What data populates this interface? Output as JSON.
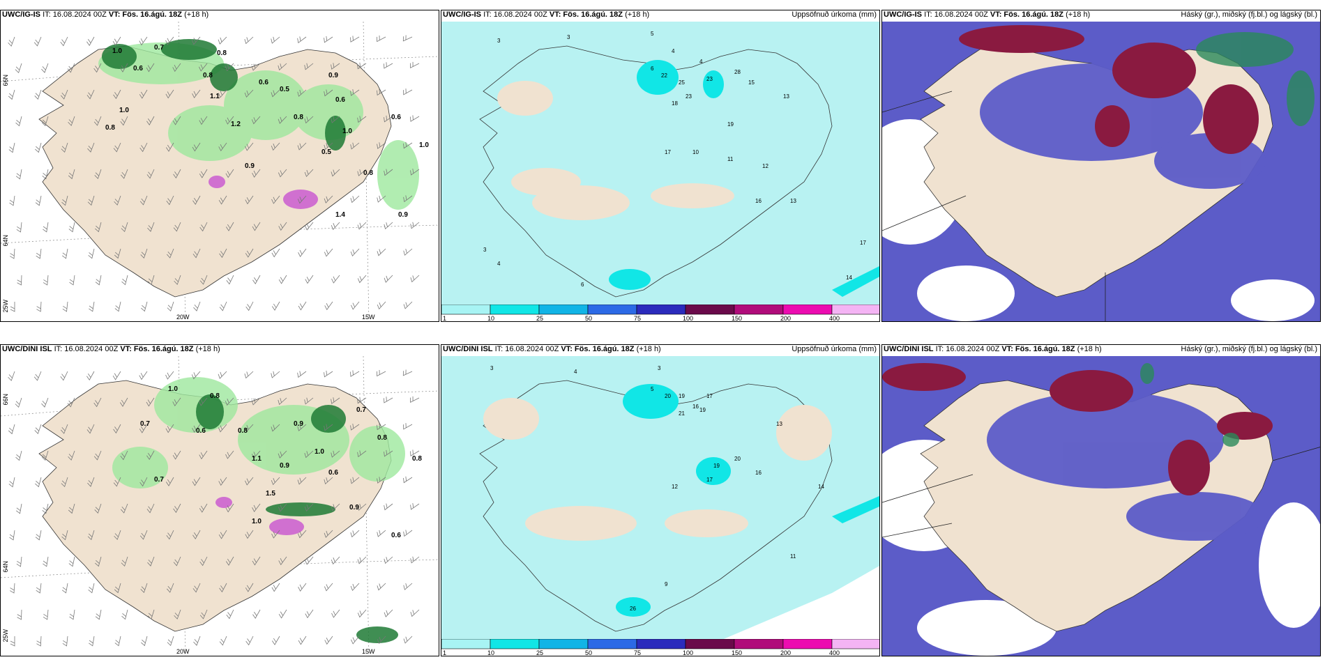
{
  "panels": [
    {
      "model": "UWC/IG-IS",
      "it": "IT: 16.08.2024 00Z",
      "vt": "VT: Fös. 16.ágú. 18Z",
      "lead": "(+18 h)",
      "right": ""
    },
    {
      "model": "UWC/IG-IS",
      "it": "IT: 16.08.2024 00Z",
      "vt": "VT: Fös. 16.ágú. 18Z",
      "lead": "(+18 h)",
      "right": "Uppsöfnuð úrkoma (mm)"
    },
    {
      "model": "UWC/IG-IS",
      "it": "IT: 16.08.2024 00Z",
      "vt": "VT: Fös. 16.ágú. 18Z",
      "lead": "(+18 h)",
      "right": "Háský (gr.), miðský (fj.bl.) og lágský (bl.)"
    },
    {
      "model": "UWC/DINI ISL",
      "it": "IT: 16.08.2024 00Z",
      "vt": "VT: Fös. 16.ágú. 18Z",
      "lead": "(+18 h)",
      "right": ""
    },
    {
      "model": "UWC/DINI ISL",
      "it": "IT: 16.08.2024 00Z",
      "vt": "VT: Fös. 16.ágú. 18Z",
      "lead": "(+18 h)",
      "right": "Uppsöfnuð úrkoma (mm)"
    },
    {
      "model": "UWC/DINI ISL",
      "it": "IT: 16.08.2024 00Z",
      "vt": "VT: Fös. 16.ágú. 18Z",
      "lead": "(+18 h)",
      "right": "Háský (gr.), miðský (fj.bl.) og lágský (bl.)"
    }
  ],
  "lat_labels": {
    "top": "66N",
    "bottom": "64N"
  },
  "lon_labels": {
    "left": "25W",
    "mid": "20W",
    "right": "15W"
  },
  "colorbar": {
    "ticks": [
      "1",
      "10",
      "25",
      "50",
      "75",
      "100",
      "150",
      "200",
      "400"
    ],
    "colors": [
      "#a8f4f4",
      "#11e6e6",
      "#11b4e6",
      "#2c6ae6",
      "#2b2bbc",
      "#6a0a4a",
      "#b00c7a",
      "#ec0cb0",
      "#f4b4f4"
    ]
  },
  "colors": {
    "land": "#f0e2d0",
    "sea_precip": "#b8f2f2",
    "cloud_low": "#5c5cc8",
    "cloud_mid": "#8a1a40",
    "cloud_high": "#2a8a5a",
    "rain_green": "#2a8a3a"
  },
  "gusts_top": [
    "0.7",
    "1.0",
    "0.8",
    "0.6",
    "0.8",
    "0.6",
    "0.5",
    "1.1",
    "1.0",
    "0.8",
    "0.9",
    "0.6",
    "1.2",
    "0.8",
    "0.5",
    "0.9",
    "1.0",
    "0.6",
    "0.8",
    "0.9",
    "1.0",
    "1.4"
  ],
  "gusts_bot": [
    "1.0",
    "0.8",
    "0.7",
    "0.6",
    "0.8",
    "0.9",
    "1.0",
    "0.7",
    "0.8",
    "1.1",
    "0.9",
    "0.6",
    "0.7",
    "1.5",
    "0.9",
    "1.0",
    "0.6",
    "0.8"
  ],
  "precip_top": [
    "3",
    "3",
    "5",
    "4",
    "4",
    "6",
    "22",
    "25",
    "23",
    "28",
    "15",
    "23",
    "18",
    "17",
    "13",
    "19",
    "10",
    "11",
    "12",
    "16",
    "13",
    "17",
    "14",
    "3",
    "4",
    "6"
  ],
  "precip_bot": [
    "3",
    "4",
    "3",
    "5",
    "20",
    "19",
    "16",
    "21",
    "17",
    "19",
    "13",
    "20",
    "19",
    "17",
    "16",
    "12",
    "14",
    "11",
    "26",
    "9"
  ]
}
